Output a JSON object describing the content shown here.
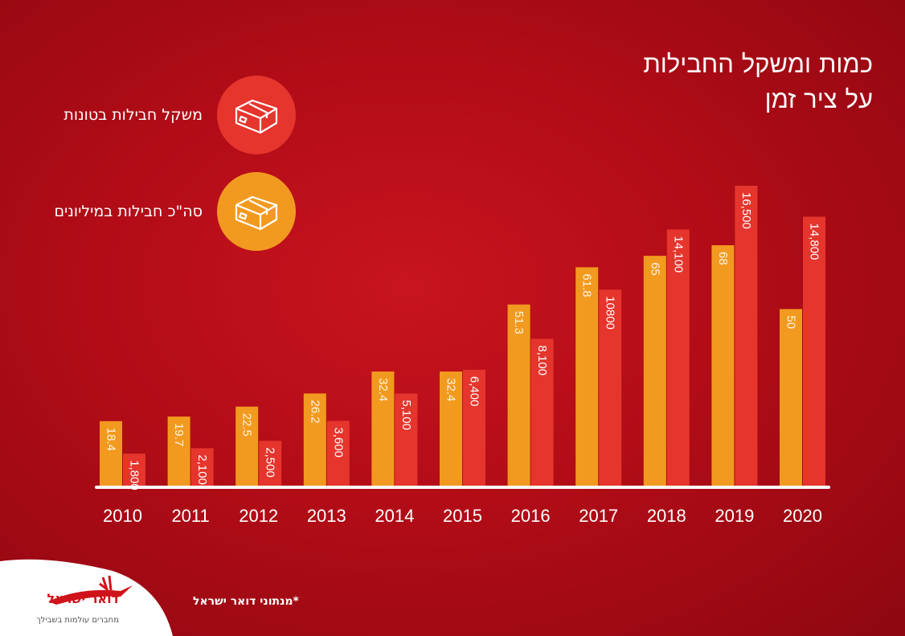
{
  "title_lines": [
    "כמות ומשקל החבילות",
    "על ציר זמן"
  ],
  "legend": [
    {
      "label": "משקל חבילות בטונות",
      "color": "#e5352d",
      "icon": "package-icon"
    },
    {
      "label": "סה\"כ חבילות במיליונים",
      "color": "#f29a20",
      "icon": "package-icon"
    }
  ],
  "colors": {
    "orange": "#f29a20",
    "red": "#e5352d",
    "baseline": "#ffffff"
  },
  "footnote": "*מנתוני דואר ישראל",
  "logo": {
    "name": "דואר ישראל",
    "tagline": "מחברים עולמות בשבילך"
  },
  "chart_data": {
    "type": "bar",
    "categories": [
      "2010",
      "2011",
      "2012",
      "2013",
      "2014",
      "2015",
      "2016",
      "2017",
      "2018",
      "2019",
      "2020"
    ],
    "series": [
      {
        "name": "סה\"כ חבילות במיליונים",
        "values": [
          18.4,
          19.7,
          22.5,
          26.2,
          32.4,
          32.4,
          51.3,
          61.8,
          65,
          68,
          50
        ],
        "labels": [
          "18.4",
          "19.7",
          "22.5",
          "26.2",
          "32.4",
          "32.4",
          "51.3",
          "61.8",
          "65",
          "68",
          "50"
        ]
      },
      {
        "name": "משקל חבילות בטונות",
        "values": [
          1800,
          2100,
          2500,
          3600,
          5100,
          6400,
          8100,
          10800,
          14100,
          16500,
          14800
        ],
        "labels": [
          "1,800",
          "2,100",
          "2,500",
          "3,600",
          "5,100",
          "6,400",
          "8,100",
          "10800",
          "14,100",
          "16,500",
          "14,800"
        ]
      }
    ]
  }
}
